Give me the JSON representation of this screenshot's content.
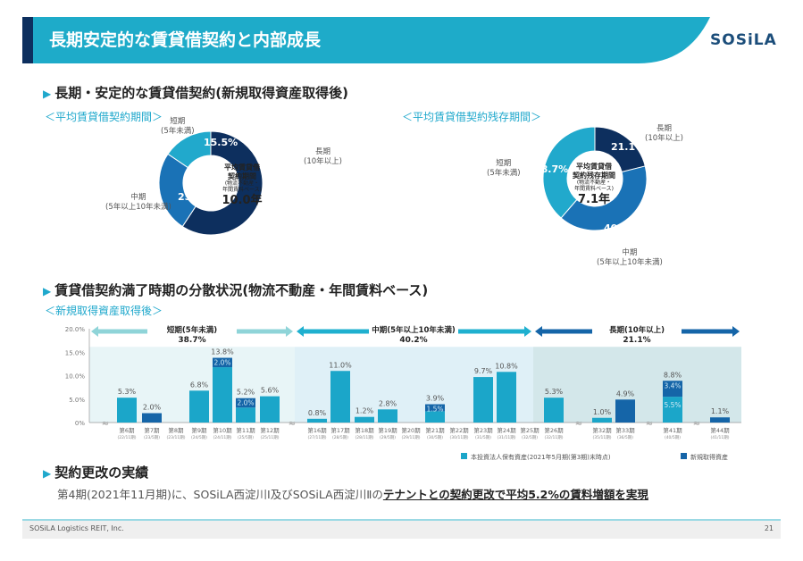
{
  "header": {
    "title": "長期安定的な賃貸借契約と内部成長",
    "logo": "SOSiLA"
  },
  "section1": {
    "title": "長期・安定的な賃貸借契約(新規取得資産取得後)"
  },
  "section2": {
    "title": "賃貸借契約満了時期の分散状況(物流不動産・年間賃料ベース)",
    "subtitle": "＜新規取得資産取得後＞"
  },
  "section3": {
    "title": "契約更改の実績",
    "text_plain": "第4期(2021年11月期)に、SOSiLA西淀川Ⅰ及びSOSiLA西淀川Ⅱの",
    "text_emph": "テナントとの契約更改で平均5.2%の賃料増額を実現"
  },
  "footer": {
    "company": "SOSiLA Logistics REIT, Inc.",
    "page": "21"
  },
  "colors": {
    "long": "#0d2f5e",
    "mid": "#1a72b6",
    "short": "#21a9cc",
    "existing": "#1ba6c9",
    "new": "#1565a8"
  },
  "chart_data": [
    {
      "type": "pie",
      "subtitle": "＜平均賃貸借契約期間＞",
      "center": {
        "line1": "平均賃貸借",
        "line2": "契約期間",
        "line3": "(物流不動産・",
        "line4": "年間賃料ベース)",
        "value": "10.0年"
      },
      "slices": [
        {
          "label": "長期",
          "sublabel": "(10年以上)",
          "value": 59.2,
          "display": "59.2%"
        },
        {
          "label": "中期",
          "sublabel": "(5年以上10年未満)",
          "value": 25.3,
          "display": "25.3%"
        },
        {
          "label": "短期",
          "sublabel": "(5年未満)",
          "value": 15.5,
          "display": "15.5%"
        }
      ]
    },
    {
      "type": "pie",
      "subtitle": "＜平均賃貸借契約残存期間＞",
      "center": {
        "line1": "平均賃貸借",
        "line2": "契約残存期間",
        "line3": "(物流不動産・",
        "line4": "年間賃料ベース)",
        "value": "7.1年"
      },
      "slices": [
        {
          "label": "長期",
          "sublabel": "(10年以上)",
          "value": 21.1,
          "display": "21.1%"
        },
        {
          "label": "中期",
          "sublabel": "(5年以上10年未満)",
          "value": 40.2,
          "display": "40.2%"
        },
        {
          "label": "短期",
          "sublabel": "(5年未満)",
          "value": 38.7,
          "display": "38.7%"
        }
      ]
    },
    {
      "type": "bar",
      "stacked": true,
      "ylim": [
        0,
        20
      ],
      "yticks": [
        "0%",
        "5.0%",
        "10.0%",
        "15.0%",
        "20.0%"
      ],
      "bands": [
        {
          "label": "短期(5年未満)",
          "value": "38.7%"
        },
        {
          "label": "中期(5年以上10年未満)",
          "value": "40.2%"
        },
        {
          "label": "長期(10年以上)",
          "value": "21.1%"
        }
      ],
      "legend": [
        "本投資法人保有資産(2021年5月期(第3期)末時点)",
        "新規取得資産"
      ],
      "categories": [
        {
          "name": "第6期",
          "sub": "(22/11期)",
          "existing": 5.3,
          "new": 0,
          "total": "5.3%"
        },
        {
          "name": "第7期",
          "sub": "(23/5期)",
          "existing": 0,
          "new": 2.0,
          "total": "2.0%"
        },
        {
          "name": "第8期",
          "sub": "(23/11期)",
          "existing": 0,
          "new": 0,
          "total": ""
        },
        {
          "name": "第9期",
          "sub": "(24/5期)",
          "existing": 6.8,
          "new": 0,
          "total": "6.8%"
        },
        {
          "name": "第10期",
          "sub": "(24/11期)",
          "existing": 11.8,
          "new": 2.0,
          "total": "13.8%",
          "new_label": "2.0%"
        },
        {
          "name": "第11期",
          "sub": "(25/5期)",
          "existing": 3.2,
          "new": 2.0,
          "total": "5.2%",
          "new_label": "2.0%"
        },
        {
          "name": "第12期",
          "sub": "(25/11期)",
          "existing": 5.6,
          "new": 0,
          "total": "5.6%"
        },
        {
          "name": "第16期",
          "sub": "(27/11期)",
          "existing": 0.8,
          "new": 0,
          "total": "0.8%"
        },
        {
          "name": "第17期",
          "sub": "(28/5期)",
          "existing": 11.0,
          "new": 0,
          "total": "11.0%"
        },
        {
          "name": "第18期",
          "sub": "(28/11期)",
          "existing": 1.2,
          "new": 0,
          "total": "1.2%"
        },
        {
          "name": "第19期",
          "sub": "(29/5期)",
          "existing": 2.8,
          "new": 0,
          "total": "2.8%"
        },
        {
          "name": "第20期",
          "sub": "(29/11期)",
          "existing": 0,
          "new": 0,
          "total": ""
        },
        {
          "name": "第21期",
          "sub": "(30/5期)",
          "existing": 2.4,
          "new": 1.5,
          "total": "3.9%",
          "new_label": "1.5%"
        },
        {
          "name": "第22期",
          "sub": "(30/11期)",
          "existing": 0,
          "new": 0,
          "total": ""
        },
        {
          "name": "第23期",
          "sub": "(31/5期)",
          "existing": 9.7,
          "new": 0,
          "total": "9.7%"
        },
        {
          "name": "第24期",
          "sub": "(31/11期)",
          "existing": 10.8,
          "new": 0,
          "total": "10.8%"
        },
        {
          "name": "第25期",
          "sub": "(32/5期)",
          "existing": 0,
          "new": 0,
          "total": ""
        },
        {
          "name": "第26期",
          "sub": "(32/11期)",
          "existing": 5.3,
          "new": 0,
          "total": "5.3%"
        },
        {
          "name": "第32期",
          "sub": "(35/11期)",
          "existing": 1.0,
          "new": 0,
          "total": "1.0%"
        },
        {
          "name": "第33期",
          "sub": "(36/5期)",
          "existing": 0,
          "new": 4.9,
          "total": "4.9%"
        },
        {
          "name": "第41期",
          "sub": "(40/5期)",
          "existing": 5.5,
          "new": 3.4,
          "total": "8.8%",
          "new_label": "3.4%",
          "existing_label": "5.5%"
        },
        {
          "name": "第44期",
          "sub": "(41/11期)",
          "existing": 0,
          "new": 1.1,
          "total": "1.1%"
        }
      ]
    }
  ]
}
